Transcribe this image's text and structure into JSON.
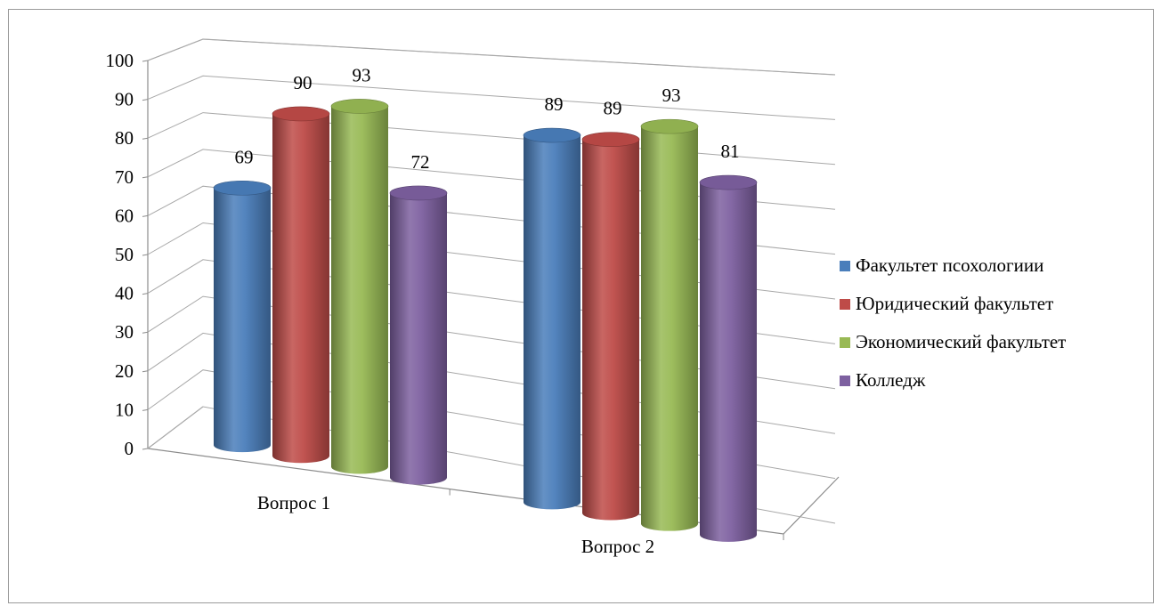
{
  "chart_data": {
    "type": "bar",
    "style": "3d-cylinder",
    "categories": [
      "Вопрос 1",
      "Вопрос 2"
    ],
    "series": [
      {
        "name": "Факультет псохологиии",
        "values": [
          69,
          89
        ],
        "color": "#4a7ebb"
      },
      {
        "name": "Юридический факультет",
        "values": [
          90,
          89
        ],
        "color": "#be4b48"
      },
      {
        "name": "Экономический факультет",
        "values": [
          93,
          93
        ],
        "color": "#98b954"
      },
      {
        "name": "Колледж",
        "values": [
          72,
          81
        ],
        "color": "#7d60a0"
      }
    ],
    "ylim": [
      0,
      100
    ],
    "yticks": [
      0,
      10,
      20,
      30,
      40,
      50,
      60,
      70,
      80,
      90,
      100
    ],
    "grid": true,
    "legend_position": "right",
    "data_labels": true
  }
}
